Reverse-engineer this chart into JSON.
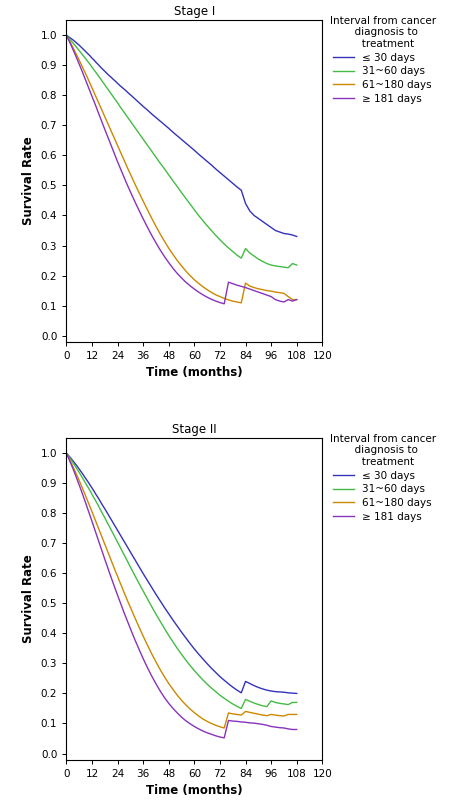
{
  "panel1_title": "Stage I",
  "panel2_title": "Stage II",
  "xlabel": "Time (months)",
  "ylabel": "Survival Rate",
  "xlim": [
    0,
    120
  ],
  "ylim": [
    -0.02,
    1.05
  ],
  "xticks": [
    0,
    12,
    24,
    36,
    48,
    60,
    72,
    84,
    96,
    108,
    120
  ],
  "yticks": [
    0.0,
    0.1,
    0.2,
    0.3,
    0.4,
    0.5,
    0.6,
    0.7,
    0.8,
    0.9,
    1.0
  ],
  "legend_title": "Interval from cancer\n  diagnosis to\n   treatment",
  "legend_labels": [
    "≤ 30 days",
    "31~60 days",
    "61~180 days",
    "≥ 181 days"
  ],
  "colors": [
    "#3333bb",
    "#44bb44",
    "#cc8800",
    "#8833bb"
  ],
  "linewidth": 1.0,
  "panel1": {
    "blue": {
      "x": [
        0,
        1,
        2,
        3,
        4,
        5,
        6,
        7,
        8,
        9,
        10,
        11,
        12,
        13,
        14,
        15,
        16,
        17,
        18,
        19,
        20,
        21,
        22,
        23,
        24,
        25,
        26,
        27,
        28,
        29,
        30,
        32,
        34,
        36,
        38,
        40,
        42,
        44,
        46,
        48,
        50,
        52,
        54,
        56,
        58,
        60,
        62,
        64,
        66,
        68,
        70,
        72,
        74,
        76,
        78,
        80,
        82,
        84,
        86,
        88,
        90,
        92,
        94,
        96,
        98,
        100,
        102,
        104,
        106,
        108
      ],
      "y": [
        1.0,
        0.995,
        0.99,
        0.985,
        0.979,
        0.973,
        0.967,
        0.96,
        0.953,
        0.946,
        0.939,
        0.932,
        0.924,
        0.917,
        0.909,
        0.902,
        0.894,
        0.887,
        0.88,
        0.873,
        0.866,
        0.86,
        0.853,
        0.847,
        0.84,
        0.833,
        0.827,
        0.821,
        0.815,
        0.808,
        0.802,
        0.789,
        0.776,
        0.763,
        0.751,
        0.738,
        0.726,
        0.714,
        0.702,
        0.69,
        0.677,
        0.665,
        0.653,
        0.641,
        0.629,
        0.617,
        0.604,
        0.592,
        0.58,
        0.568,
        0.555,
        0.543,
        0.531,
        0.519,
        0.507,
        0.495,
        0.484,
        0.44,
        0.415,
        0.4,
        0.39,
        0.38,
        0.37,
        0.36,
        0.35,
        0.345,
        0.34,
        0.338,
        0.335,
        0.33
      ]
    },
    "green": {
      "x": [
        0,
        1,
        2,
        3,
        4,
        5,
        6,
        7,
        8,
        9,
        10,
        11,
        12,
        13,
        14,
        15,
        16,
        17,
        18,
        19,
        20,
        21,
        22,
        23,
        24,
        25,
        26,
        27,
        28,
        29,
        30,
        32,
        34,
        36,
        38,
        40,
        42,
        44,
        46,
        48,
        50,
        52,
        54,
        56,
        58,
        60,
        62,
        64,
        66,
        68,
        70,
        72,
        74,
        76,
        78,
        80,
        82,
        84,
        86,
        88,
        90,
        92,
        94,
        96,
        98,
        100,
        102,
        104,
        106,
        108
      ],
      "y": [
        1.0,
        0.992,
        0.983,
        0.975,
        0.967,
        0.958,
        0.949,
        0.94,
        0.931,
        0.922,
        0.913,
        0.904,
        0.894,
        0.884,
        0.875,
        0.865,
        0.855,
        0.845,
        0.835,
        0.825,
        0.815,
        0.805,
        0.795,
        0.785,
        0.775,
        0.764,
        0.754,
        0.744,
        0.734,
        0.724,
        0.714,
        0.694,
        0.674,
        0.654,
        0.634,
        0.614,
        0.594,
        0.574,
        0.555,
        0.535,
        0.515,
        0.496,
        0.476,
        0.457,
        0.438,
        0.419,
        0.4,
        0.383,
        0.366,
        0.35,
        0.334,
        0.319,
        0.305,
        0.292,
        0.28,
        0.268,
        0.258,
        0.29,
        0.275,
        0.265,
        0.255,
        0.247,
        0.24,
        0.235,
        0.232,
        0.23,
        0.228,
        0.226,
        0.24,
        0.235
      ]
    },
    "orange": {
      "x": [
        0,
        1,
        2,
        3,
        4,
        5,
        6,
        7,
        8,
        9,
        10,
        11,
        12,
        13,
        14,
        15,
        16,
        17,
        18,
        19,
        20,
        21,
        22,
        23,
        24,
        25,
        26,
        27,
        28,
        29,
        30,
        32,
        34,
        36,
        38,
        40,
        42,
        44,
        46,
        48,
        50,
        52,
        54,
        56,
        58,
        60,
        62,
        64,
        66,
        68,
        70,
        72,
        74,
        76,
        78,
        80,
        82,
        84,
        86,
        88,
        90,
        92,
        94,
        96,
        98,
        100,
        102,
        104,
        106,
        108
      ],
      "y": [
        1.0,
        0.987,
        0.974,
        0.96,
        0.946,
        0.932,
        0.917,
        0.902,
        0.887,
        0.872,
        0.857,
        0.841,
        0.825,
        0.809,
        0.793,
        0.777,
        0.761,
        0.745,
        0.729,
        0.713,
        0.697,
        0.681,
        0.665,
        0.649,
        0.633,
        0.617,
        0.601,
        0.585,
        0.569,
        0.553,
        0.538,
        0.507,
        0.477,
        0.448,
        0.419,
        0.391,
        0.364,
        0.338,
        0.314,
        0.291,
        0.27,
        0.25,
        0.232,
        0.215,
        0.2,
        0.186,
        0.174,
        0.163,
        0.153,
        0.144,
        0.136,
        0.13,
        0.124,
        0.119,
        0.115,
        0.112,
        0.109,
        0.175,
        0.165,
        0.16,
        0.156,
        0.153,
        0.15,
        0.148,
        0.145,
        0.143,
        0.141,
        0.13,
        0.12,
        0.12
      ]
    },
    "purple": {
      "x": [
        0,
        1,
        2,
        3,
        4,
        5,
        6,
        7,
        8,
        9,
        10,
        11,
        12,
        13,
        14,
        15,
        16,
        17,
        18,
        19,
        20,
        21,
        22,
        23,
        24,
        25,
        26,
        27,
        28,
        29,
        30,
        32,
        34,
        36,
        38,
        40,
        42,
        44,
        46,
        48,
        50,
        52,
        54,
        56,
        58,
        60,
        62,
        64,
        66,
        68,
        70,
        72,
        74,
        76,
        78,
        80,
        82,
        84,
        86,
        88,
        90,
        92,
        94,
        96,
        98,
        100,
        102,
        104,
        106,
        108
      ],
      "y": [
        1.0,
        0.985,
        0.97,
        0.954,
        0.938,
        0.921,
        0.904,
        0.887,
        0.869,
        0.851,
        0.833,
        0.815,
        0.797,
        0.779,
        0.761,
        0.742,
        0.724,
        0.705,
        0.687,
        0.669,
        0.651,
        0.633,
        0.615,
        0.597,
        0.579,
        0.562,
        0.545,
        0.528,
        0.511,
        0.495,
        0.479,
        0.448,
        0.418,
        0.389,
        0.361,
        0.334,
        0.309,
        0.285,
        0.263,
        0.243,
        0.224,
        0.207,
        0.192,
        0.178,
        0.166,
        0.155,
        0.145,
        0.136,
        0.128,
        0.121,
        0.115,
        0.11,
        0.106,
        0.178,
        0.173,
        0.168,
        0.164,
        0.16,
        0.155,
        0.15,
        0.145,
        0.14,
        0.135,
        0.13,
        0.12,
        0.115,
        0.112,
        0.12,
        0.115,
        0.12
      ]
    }
  },
  "panel2": {
    "blue": {
      "x": [
        0,
        1,
        2,
        3,
        4,
        5,
        6,
        7,
        8,
        9,
        10,
        11,
        12,
        13,
        14,
        15,
        16,
        17,
        18,
        19,
        20,
        21,
        22,
        23,
        24,
        25,
        26,
        27,
        28,
        29,
        30,
        32,
        34,
        36,
        38,
        40,
        42,
        44,
        46,
        48,
        50,
        52,
        54,
        56,
        58,
        60,
        62,
        64,
        66,
        68,
        70,
        72,
        74,
        76,
        78,
        80,
        82,
        84,
        86,
        88,
        90,
        92,
        94,
        96,
        98,
        100,
        102,
        104,
        106,
        108
      ],
      "y": [
        1.0,
        0.992,
        0.984,
        0.975,
        0.966,
        0.957,
        0.947,
        0.937,
        0.927,
        0.916,
        0.906,
        0.895,
        0.884,
        0.873,
        0.861,
        0.85,
        0.838,
        0.826,
        0.815,
        0.803,
        0.791,
        0.779,
        0.767,
        0.755,
        0.743,
        0.731,
        0.719,
        0.707,
        0.695,
        0.683,
        0.671,
        0.647,
        0.623,
        0.599,
        0.576,
        0.553,
        0.53,
        0.508,
        0.486,
        0.465,
        0.444,
        0.424,
        0.404,
        0.385,
        0.366,
        0.348,
        0.331,
        0.315,
        0.299,
        0.284,
        0.27,
        0.256,
        0.244,
        0.232,
        0.221,
        0.211,
        0.202,
        0.24,
        0.233,
        0.226,
        0.22,
        0.215,
        0.211,
        0.208,
        0.206,
        0.205,
        0.204,
        0.202,
        0.201,
        0.2
      ]
    },
    "green": {
      "x": [
        0,
        1,
        2,
        3,
        4,
        5,
        6,
        7,
        8,
        9,
        10,
        11,
        12,
        13,
        14,
        15,
        16,
        17,
        18,
        19,
        20,
        21,
        22,
        23,
        24,
        25,
        26,
        27,
        28,
        29,
        30,
        32,
        34,
        36,
        38,
        40,
        42,
        44,
        46,
        48,
        50,
        52,
        54,
        56,
        58,
        60,
        62,
        64,
        66,
        68,
        70,
        72,
        74,
        76,
        78,
        80,
        82,
        84,
        86,
        88,
        90,
        92,
        94,
        96,
        98,
        100,
        102,
        104,
        106,
        108
      ],
      "y": [
        1.0,
        0.99,
        0.98,
        0.969,
        0.958,
        0.947,
        0.936,
        0.924,
        0.912,
        0.9,
        0.888,
        0.876,
        0.863,
        0.85,
        0.838,
        0.825,
        0.811,
        0.798,
        0.785,
        0.771,
        0.758,
        0.744,
        0.731,
        0.717,
        0.703,
        0.69,
        0.676,
        0.662,
        0.649,
        0.635,
        0.621,
        0.594,
        0.567,
        0.541,
        0.515,
        0.489,
        0.464,
        0.44,
        0.416,
        0.393,
        0.371,
        0.35,
        0.33,
        0.311,
        0.293,
        0.276,
        0.26,
        0.245,
        0.231,
        0.218,
        0.206,
        0.194,
        0.184,
        0.174,
        0.165,
        0.157,
        0.15,
        0.18,
        0.174,
        0.168,
        0.163,
        0.159,
        0.156,
        0.175,
        0.17,
        0.167,
        0.165,
        0.163,
        0.17,
        0.17
      ]
    },
    "orange": {
      "x": [
        0,
        1,
        2,
        3,
        4,
        5,
        6,
        7,
        8,
        9,
        10,
        11,
        12,
        13,
        14,
        15,
        16,
        17,
        18,
        19,
        20,
        21,
        22,
        23,
        24,
        25,
        26,
        27,
        28,
        29,
        30,
        32,
        34,
        36,
        38,
        40,
        42,
        44,
        46,
        48,
        50,
        52,
        54,
        56,
        58,
        60,
        62,
        64,
        66,
        68,
        70,
        72,
        74,
        76,
        78,
        80,
        82,
        84,
        86,
        88,
        90,
        92,
        94,
        96,
        98,
        100,
        102,
        104,
        106,
        108
      ],
      "y": [
        1.0,
        0.986,
        0.971,
        0.956,
        0.941,
        0.925,
        0.909,
        0.892,
        0.875,
        0.858,
        0.84,
        0.823,
        0.805,
        0.787,
        0.769,
        0.751,
        0.733,
        0.715,
        0.697,
        0.679,
        0.661,
        0.643,
        0.625,
        0.607,
        0.59,
        0.572,
        0.555,
        0.537,
        0.52,
        0.503,
        0.487,
        0.454,
        0.422,
        0.391,
        0.361,
        0.332,
        0.305,
        0.279,
        0.255,
        0.233,
        0.213,
        0.194,
        0.177,
        0.162,
        0.148,
        0.136,
        0.125,
        0.115,
        0.107,
        0.1,
        0.094,
        0.089,
        0.085,
        0.135,
        0.132,
        0.13,
        0.128,
        0.14,
        0.137,
        0.134,
        0.131,
        0.128,
        0.126,
        0.13,
        0.128,
        0.126,
        0.125,
        0.13,
        0.13,
        0.13
      ]
    },
    "purple": {
      "x": [
        0,
        1,
        2,
        3,
        4,
        5,
        6,
        7,
        8,
        9,
        10,
        11,
        12,
        13,
        14,
        15,
        16,
        17,
        18,
        19,
        20,
        21,
        22,
        23,
        24,
        25,
        26,
        27,
        28,
        29,
        30,
        32,
        34,
        36,
        38,
        40,
        42,
        44,
        46,
        48,
        50,
        52,
        54,
        56,
        58,
        60,
        62,
        64,
        66,
        68,
        70,
        72,
        74,
        76,
        78,
        80,
        82,
        84,
        86,
        88,
        90,
        92,
        94,
        96,
        98,
        100,
        102,
        104,
        106,
        108
      ],
      "y": [
        1.0,
        0.984,
        0.967,
        0.95,
        0.932,
        0.913,
        0.894,
        0.875,
        0.855,
        0.835,
        0.814,
        0.794,
        0.773,
        0.752,
        0.731,
        0.71,
        0.689,
        0.668,
        0.647,
        0.627,
        0.606,
        0.586,
        0.566,
        0.546,
        0.527,
        0.508,
        0.489,
        0.47,
        0.452,
        0.434,
        0.416,
        0.381,
        0.348,
        0.316,
        0.286,
        0.258,
        0.232,
        0.208,
        0.186,
        0.167,
        0.15,
        0.135,
        0.121,
        0.109,
        0.099,
        0.09,
        0.082,
        0.075,
        0.069,
        0.064,
        0.059,
        0.055,
        0.052,
        0.11,
        0.108,
        0.107,
        0.105,
        0.104,
        0.102,
        0.101,
        0.099,
        0.097,
        0.094,
        0.09,
        0.088,
        0.086,
        0.085,
        0.082,
        0.08,
        0.08
      ]
    }
  }
}
